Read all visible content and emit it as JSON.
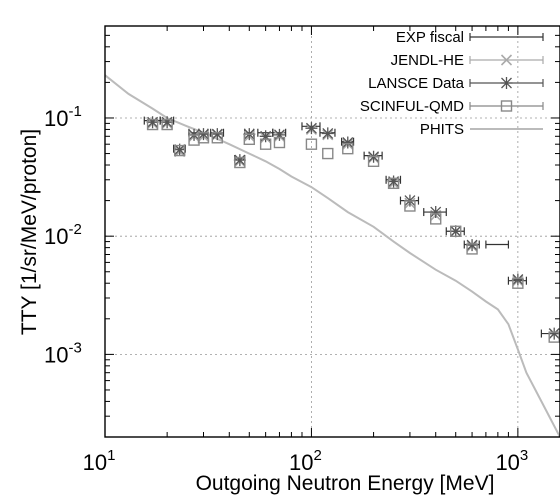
{
  "chart_data": {
    "type": "scatter",
    "xlabel": "Outgoing Neutron Energy [MeV]",
    "ylabel": "TTY [1/sr/MeV/proton]",
    "xscale": "log",
    "yscale": "log",
    "xlim": [
      10,
      1600
    ],
    "ylim": [
      0.0002,
      0.6
    ],
    "grid": true,
    "legend_position": "top-right",
    "x_ticks": [
      {
        "base": "10",
        "exp": "1",
        "value": 10
      },
      {
        "base": "10",
        "exp": "2",
        "value": 100
      },
      {
        "base": "10",
        "exp": "3",
        "value": 1000
      }
    ],
    "y_ticks": [
      {
        "base": "10",
        "exp": "-1",
        "value": 0.1
      },
      {
        "base": "10",
        "exp": "-2",
        "value": 0.01
      },
      {
        "base": "10",
        "exp": "-3",
        "value": 0.001
      }
    ],
    "series": [
      {
        "name": "EXP fiscal",
        "marker": "none",
        "color": "#333333",
        "x": [
          17,
          20,
          23,
          27,
          30,
          35,
          45,
          50,
          60,
          70,
          100,
          120,
          150,
          200,
          250,
          300,
          400,
          500,
          600,
          800,
          1000,
          1500
        ],
        "y": [
          0.095,
          0.095,
          0.055,
          0.075,
          0.075,
          0.075,
          0.045,
          0.075,
          0.075,
          0.075,
          0.085,
          0.075,
          0.063,
          0.048,
          0.03,
          0.02,
          0.016,
          0.011,
          0.0085,
          0.0085,
          0.0042,
          0.0015
        ],
        "xerr_low": [
          15.5,
          18.5,
          21.5,
          25.5,
          28.5,
          32.5,
          42.5,
          47.5,
          55,
          65,
          90,
          110,
          140,
          180,
          230,
          270,
          350,
          450,
          550,
          700,
          900,
          1300
        ],
        "xerr_high": [
          18.5,
          21.5,
          24.5,
          28.5,
          31.5,
          37.5,
          47.5,
          52.5,
          65,
          75,
          110,
          130,
          160,
          220,
          270,
          330,
          450,
          550,
          650,
          900,
          1100,
          1600
        ]
      },
      {
        "name": "JENDL-HE",
        "marker": "x",
        "color": "#aaaaaa",
        "x": [
          17,
          20,
          23,
          27,
          30,
          35,
          45,
          50,
          60,
          70,
          100,
          120,
          150,
          200,
          250,
          300,
          400,
          500,
          600,
          1000,
          1500
        ],
        "y": [
          0.09,
          0.09,
          0.052,
          0.07,
          0.07,
          0.072,
          0.043,
          0.07,
          0.068,
          0.07,
          0.08,
          0.072,
          0.06,
          0.046,
          0.028,
          0.019,
          0.015,
          0.011,
          0.0082,
          0.0042,
          0.0015
        ]
      },
      {
        "name": "LANSCE Data",
        "marker": "asterisk",
        "color": "#555555",
        "x": [
          17,
          20,
          23,
          27,
          30,
          35,
          45,
          50,
          60,
          70,
          100,
          120,
          150,
          200,
          250,
          300,
          400,
          500,
          600,
          1000,
          1500
        ],
        "y": [
          0.092,
          0.092,
          0.054,
          0.072,
          0.073,
          0.073,
          0.044,
          0.073,
          0.07,
          0.072,
          0.082,
          0.074,
          0.062,
          0.047,
          0.029,
          0.02,
          0.016,
          0.011,
          0.0084,
          0.0043,
          0.0015
        ]
      },
      {
        "name": "SCINFUL-QMD",
        "marker": "square",
        "color": "#888888",
        "x": [
          17,
          20,
          23,
          27,
          30,
          35,
          45,
          50,
          60,
          70,
          100,
          120,
          150,
          200,
          250,
          300,
          400,
          500,
          600,
          1000,
          1500
        ],
        "y": [
          0.088,
          0.088,
          0.053,
          0.065,
          0.068,
          0.068,
          0.042,
          0.066,
          0.06,
          0.062,
          0.06,
          0.05,
          0.055,
          0.043,
          0.028,
          0.018,
          0.014,
          0.011,
          0.0078,
          0.004,
          0.0014
        ]
      },
      {
        "name": "PHITS",
        "marker": "line",
        "color": "#bbbbbb",
        "x": [
          10,
          13,
          17,
          20,
          25,
          30,
          40,
          50,
          60,
          70,
          80,
          100,
          120,
          150,
          200,
          250,
          300,
          400,
          500,
          600,
          700,
          800,
          900,
          1000,
          1100,
          1300,
          1600
        ],
        "y": [
          0.23,
          0.16,
          0.12,
          0.1,
          0.085,
          0.075,
          0.06,
          0.05,
          0.043,
          0.037,
          0.032,
          0.026,
          0.021,
          0.016,
          0.012,
          0.009,
          0.0072,
          0.0052,
          0.0042,
          0.0034,
          0.0028,
          0.0024,
          0.0018,
          0.0011,
          0.0007,
          0.0004,
          0.0002
        ]
      }
    ]
  }
}
